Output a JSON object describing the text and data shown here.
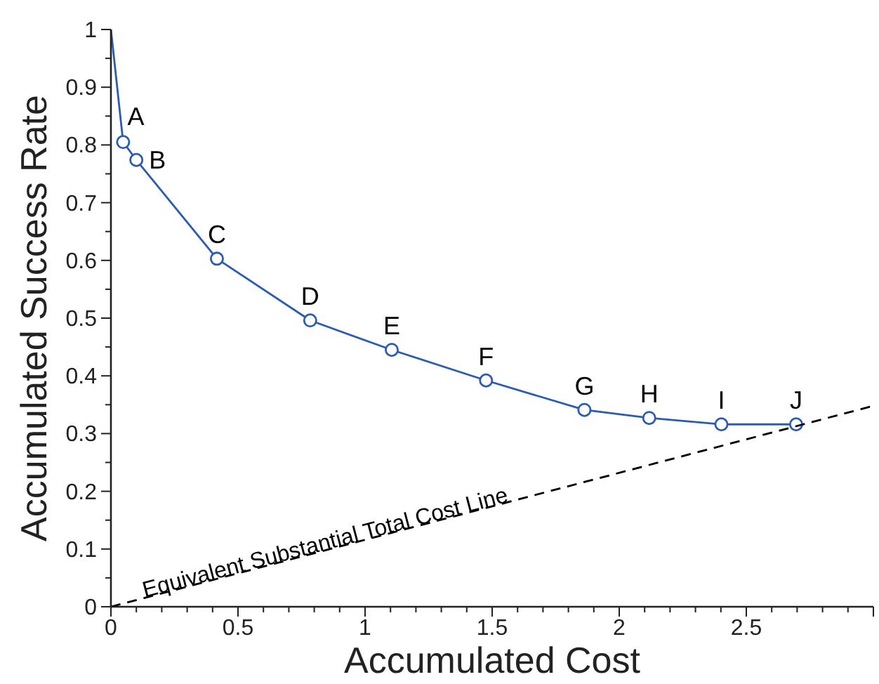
{
  "chart_data": {
    "type": "line",
    "xlabel": "Accumulated Cost",
    "ylabel": "Accumulated Success Rate",
    "xlim": [
      0,
      3
    ],
    "ylim": [
      0,
      1
    ],
    "xticks": [
      0,
      {
        "value": 0.1,
        "label": null
      },
      {
        "value": 0.2,
        "label": null
      },
      {
        "value": 0.3,
        "label": null
      },
      {
        "value": 0.4,
        "label": null
      },
      {
        "value": 0.5,
        "label": "0.5"
      },
      {
        "value": 0.6,
        "label": null
      },
      {
        "value": 0.7,
        "label": null
      },
      {
        "value": 0.8,
        "label": null
      },
      {
        "value": 0.9,
        "label": null
      },
      1,
      {
        "value": 1.1,
        "label": null
      },
      {
        "value": 1.2,
        "label": null
      },
      {
        "value": 1.3,
        "label": null
      },
      {
        "value": 1.4,
        "label": null
      },
      {
        "value": 1.5,
        "label": "1.5"
      },
      {
        "value": 1.6,
        "label": null
      },
      {
        "value": 1.7,
        "label": null
      },
      {
        "value": 1.8,
        "label": null
      },
      {
        "value": 1.9,
        "label": null
      },
      2,
      {
        "value": 2.1,
        "label": null
      },
      {
        "value": 2.2,
        "label": null
      },
      {
        "value": 2.3,
        "label": null
      },
      {
        "value": 2.4,
        "label": null
      },
      {
        "value": 2.5,
        "label": "2.5"
      },
      {
        "value": 2.6,
        "label": null
      },
      {
        "value": 2.7,
        "label": null
      },
      {
        "value": 2.8,
        "label": null
      },
      {
        "value": 2.9,
        "label": null
      },
      {
        "value": 3,
        "label": null
      }
    ],
    "yticks": [
      0,
      {
        "value": 0.05,
        "label": null
      },
      {
        "value": 0.1,
        "label": "0.1"
      },
      {
        "value": 0.15,
        "label": null
      },
      {
        "value": 0.2,
        "label": "0.2"
      },
      {
        "value": 0.25,
        "label": null
      },
      {
        "value": 0.3,
        "label": "0.3"
      },
      {
        "value": 0.35,
        "label": null
      },
      {
        "value": 0.4,
        "label": "0.4"
      },
      {
        "value": 0.45,
        "label": null
      },
      {
        "value": 0.5,
        "label": "0.5"
      },
      {
        "value": 0.55,
        "label": null
      },
      {
        "value": 0.6,
        "label": "0.6"
      },
      {
        "value": 0.65,
        "label": null
      },
      {
        "value": 0.7,
        "label": "0.7"
      },
      {
        "value": 0.75,
        "label": null
      },
      {
        "value": 0.8,
        "label": "0.8"
      },
      {
        "value": 0.85,
        "label": null
      },
      {
        "value": 0.9,
        "label": "0.9"
      },
      {
        "value": 0.95,
        "label": null
      },
      1
    ],
    "grid": false,
    "series": [
      {
        "color": "#2b5cb3",
        "marker": "none",
        "line_style": "solid",
        "x": [
          0,
          0.048,
          0.1,
          0.417,
          0.784,
          1.105,
          1.476,
          1.863,
          2.118,
          2.402,
          2.696
        ],
        "values": [
          1,
          0.805,
          0.774,
          0.603,
          0.496,
          0.445,
          0.392,
          0.341,
          0.327,
          0.316,
          0.316
        ]
      },
      {
        "type": "scatter",
        "color": "#2b5cb3",
        "marker": "circle",
        "x": [
          0.048,
          0.1,
          0.417,
          0.784,
          1.105,
          1.476,
          1.863,
          2.118,
          2.402,
          2.696
        ],
        "values": [
          0.805,
          0.774,
          0.603,
          0.496,
          0.445,
          0.392,
          0.341,
          0.327,
          0.316,
          0.316
        ],
        "value_labels": [
          "A",
          "B",
          "C",
          "D",
          "E",
          "F",
          "G",
          "H",
          "I",
          "J"
        ]
      },
      {
        "color": "#000000",
        "marker": "none",
        "line_style": "dashed",
        "x": [
          0,
          3
        ],
        "values": [
          0,
          0.348
        ]
      }
    ],
    "annotations": [
      {
        "text": "Equivalent Substantial Total Cost Line",
        "x": 0.85,
        "y": 0.099
      }
    ]
  }
}
